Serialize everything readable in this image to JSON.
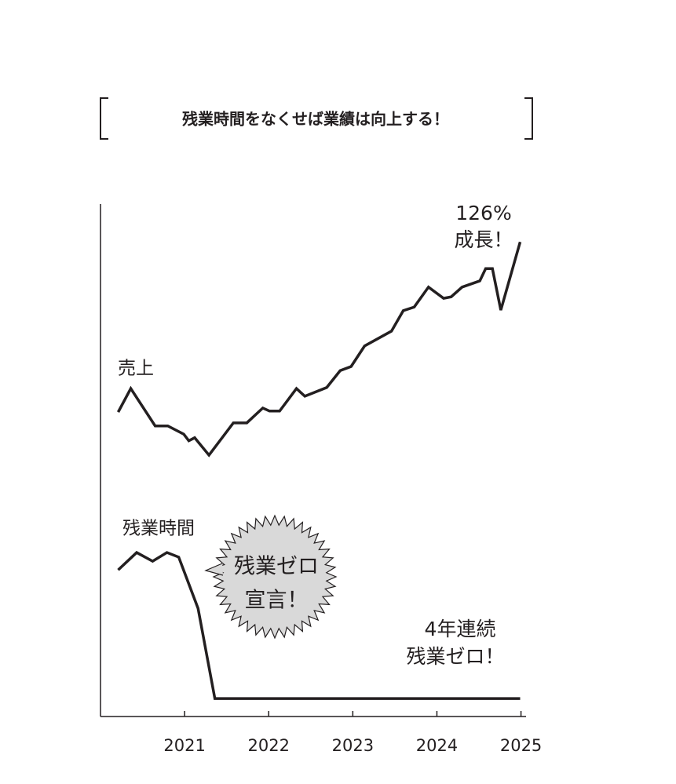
{
  "chart_data": {
    "type": "line",
    "title": "残業時間をなくせば業績は向上する！",
    "xlim": [
      2020,
      2025.06
    ],
    "ylim": [
      0,
      100
    ],
    "xticks": [
      2021,
      2022,
      2023,
      2024,
      2025
    ],
    "color": "#231f20",
    "series": [
      {
        "name": "売上",
        "x": [
          2020.21,
          2020.36,
          2020.65,
          2020.8,
          2020.99,
          2021.05,
          2021.12,
          2021.29,
          2021.58,
          2021.74,
          2021.93,
          2022.01,
          2022.13,
          2022.33,
          2022.43,
          2022.69,
          2022.85,
          2022.98,
          2023.14,
          2023.46,
          2023.6,
          2023.73,
          2023.9,
          2024.08,
          2024.17,
          2024.3,
          2024.51,
          2024.58,
          2024.66,
          2024.76,
          2024.99
        ],
        "values": [
          59.4,
          64.0,
          56.7,
          56.7,
          55.1,
          53.8,
          54.4,
          51.0,
          57.3,
          57.3,
          60.2,
          59.6,
          59.6,
          64.0,
          62.5,
          64.2,
          67.5,
          68.3,
          72.3,
          75.2,
          79.2,
          79.9,
          83.8,
          81.6,
          81.9,
          83.8,
          85.0,
          87.4,
          87.4,
          79.3,
          92.6
        ]
      },
      {
        "name": "残業時間",
        "x": [
          2020.21,
          2020.43,
          2020.62,
          2020.79,
          2020.93,
          2021.16,
          2021.36,
          2024.99
        ],
        "values": [
          28.6,
          32.0,
          30.3,
          32.0,
          31.1,
          21.1,
          3.5,
          3.5
        ]
      }
    ],
    "annotations": [
      [
        "126%",
        "成長！"
      ],
      [
        "残業ゼロ",
        "宣言！"
      ],
      [
        "4年連続",
        "残業ゼロ！"
      ]
    ]
  }
}
